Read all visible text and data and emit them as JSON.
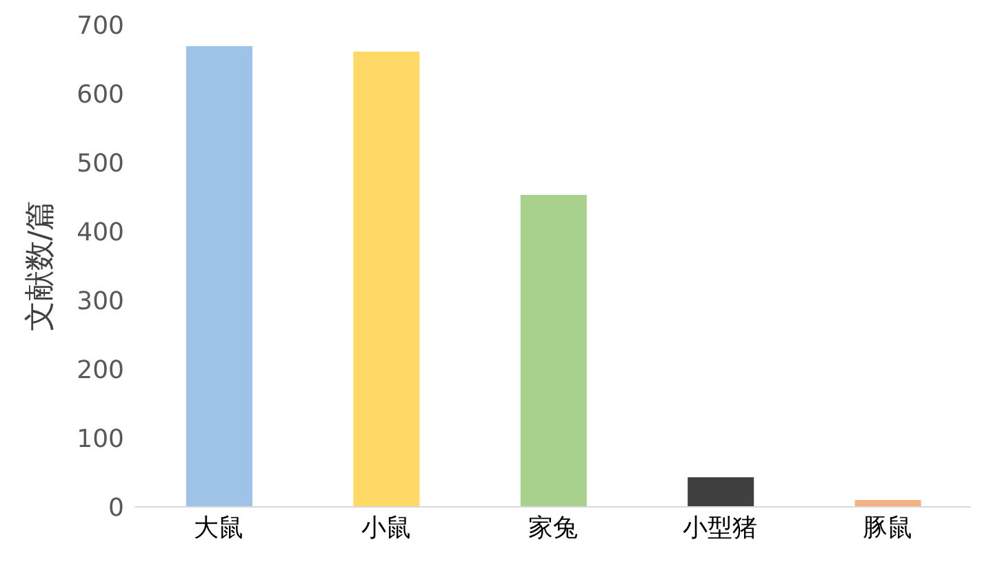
{
  "chart_data": {
    "type": "bar",
    "ylabel": "文献数/篇",
    "categories": [
      "大鼠",
      "小鼠",
      "家兔",
      "小型猪",
      "豚鼠"
    ],
    "values": [
      669,
      661,
      453,
      43,
      10
    ],
    "colors": [
      "#9dc3e6",
      "#ffd966",
      "#a9d18e",
      "#404040",
      "#f4b183"
    ],
    "ylim": [
      0,
      700
    ],
    "yticks": [
      0,
      100,
      200,
      300,
      400,
      500,
      600,
      700
    ],
    "grid": false,
    "legend": false
  }
}
